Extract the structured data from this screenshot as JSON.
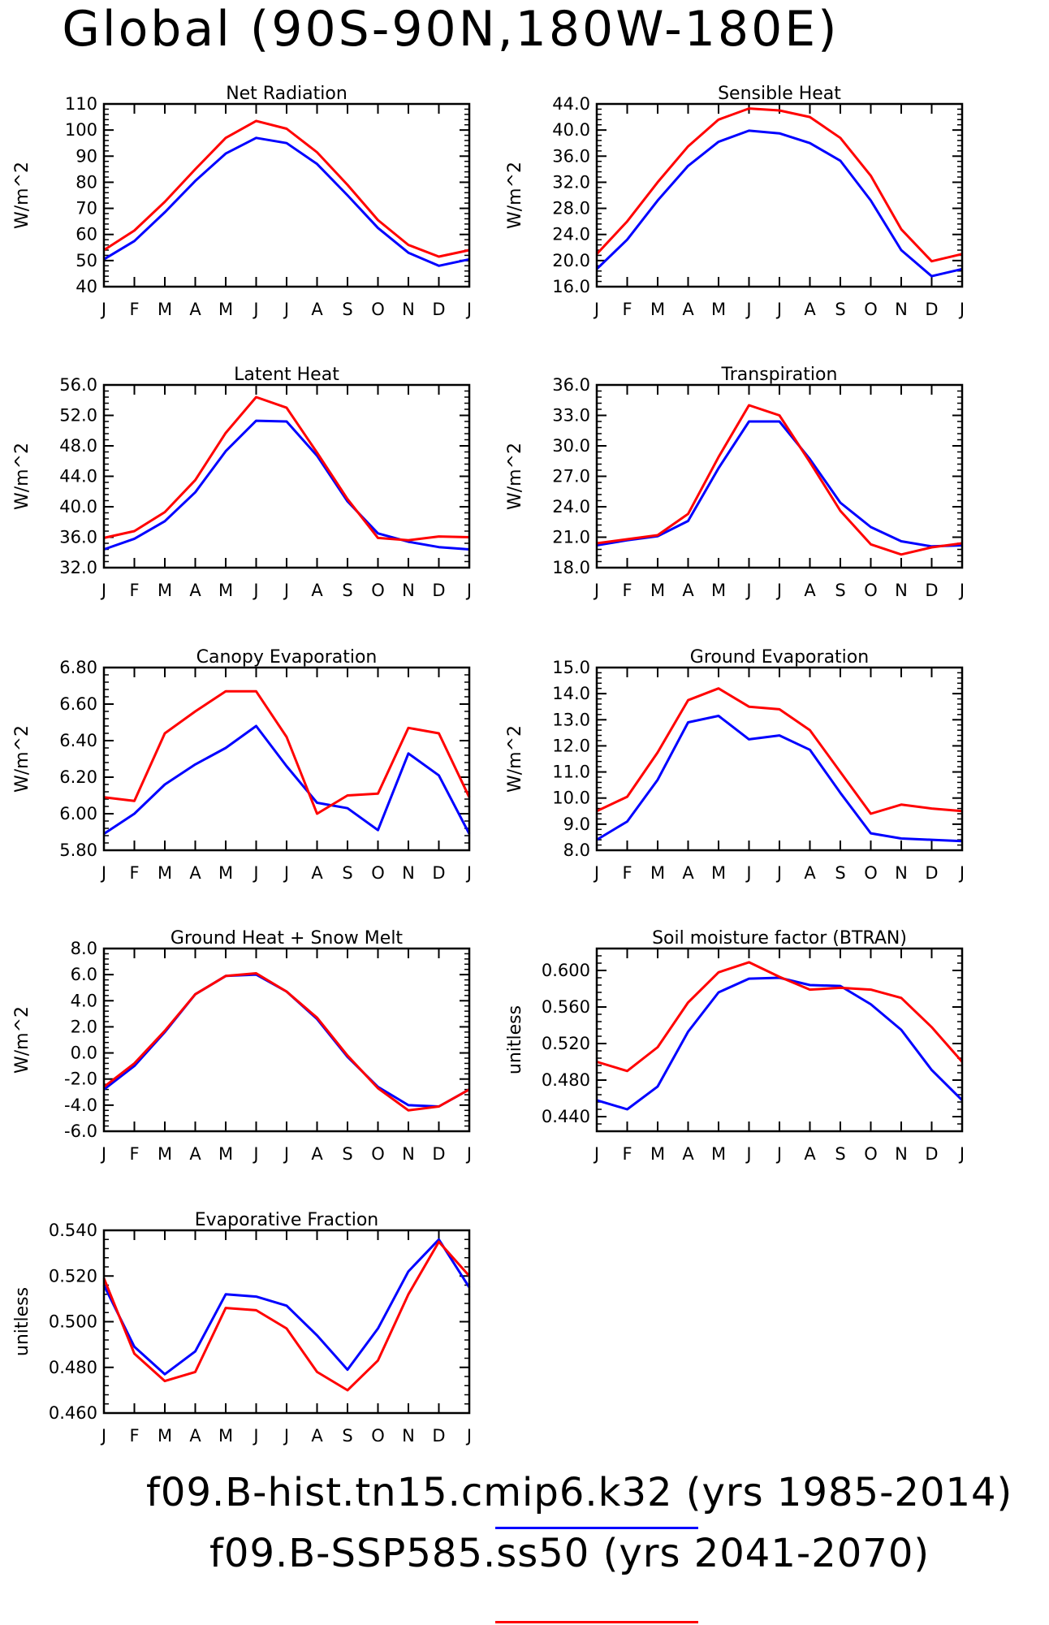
{
  "title": "Global (90S-90N,180W-180E)",
  "legend": [
    {
      "label": "f09.B-hist.tn15.cmip6.k32 (yrs 1985-2014)",
      "color": "#0000ff"
    },
    {
      "label": "f09.B-SSP585.ss50 (yrs 2041-2070)",
      "color": "#ff0000"
    }
  ],
  "chart_data": [
    {
      "type": "line",
      "title": "Net Radiation",
      "ylabel": "W/m^2",
      "ylim": [
        40,
        110
      ],
      "yticks": [
        "40",
        "50",
        "60",
        "70",
        "80",
        "90",
        "100",
        "110"
      ],
      "categories": [
        "J",
        "F",
        "M",
        "A",
        "M",
        "J",
        "J",
        "A",
        "S",
        "O",
        "N",
        "D",
        "J"
      ],
      "series": [
        {
          "values": [
            50.5,
            57.5,
            68.5,
            80.5,
            91,
            97,
            95,
            87,
            75,
            62.5,
            53,
            48,
            50.5
          ]
        },
        {
          "values": [
            54,
            61.5,
            72.5,
            85,
            97,
            103.5,
            100.5,
            91.5,
            79,
            65.5,
            56,
            51.5,
            54
          ]
        }
      ]
    },
    {
      "type": "line",
      "title": "Sensible Heat",
      "ylabel": "W/m^2",
      "ylim": [
        16,
        44
      ],
      "yticks": [
        "16.0",
        "20.0",
        "24.0",
        "28.0",
        "32.0",
        "36.0",
        "40.0",
        "44.0"
      ],
      "categories": [
        "J",
        "F",
        "M",
        "A",
        "M",
        "J",
        "J",
        "A",
        "S",
        "O",
        "N",
        "D",
        "J"
      ],
      "series": [
        {
          "values": [
            18.7,
            23.2,
            29.2,
            34.5,
            38.2,
            39.9,
            39.5,
            38.0,
            35.3,
            29.2,
            21.6,
            17.6,
            18.7
          ]
        },
        {
          "values": [
            21.0,
            26.0,
            32.0,
            37.5,
            41.6,
            43.3,
            43.0,
            42.0,
            38.8,
            33.0,
            24.8,
            19.9,
            21.0
          ]
        }
      ]
    },
    {
      "type": "line",
      "title": "Latent Heat",
      "ylabel": "W/m^2",
      "ylim": [
        32,
        56
      ],
      "yticks": [
        "32.0",
        "36.0",
        "40.0",
        "44.0",
        "48.0",
        "52.0",
        "56.0"
      ],
      "categories": [
        "J",
        "F",
        "M",
        "A",
        "M",
        "J",
        "J",
        "A",
        "S",
        "O",
        "N",
        "D",
        "J"
      ],
      "series": [
        {
          "values": [
            34.4,
            35.8,
            38.1,
            41.9,
            47.3,
            51.3,
            51.2,
            46.7,
            40.7,
            36.5,
            35.4,
            34.7,
            34.4
          ]
        },
        {
          "values": [
            35.9,
            36.8,
            39.3,
            43.5,
            49.7,
            54.4,
            53.0,
            47.1,
            41.0,
            35.9,
            35.6,
            36.1,
            36.0
          ]
        }
      ]
    },
    {
      "type": "line",
      "title": "Transpiration",
      "ylabel": "W/m^2",
      "ylim": [
        18,
        36
      ],
      "yticks": [
        "18.0",
        "21.0",
        "24.0",
        "27.0",
        "30.0",
        "33.0",
        "36.0"
      ],
      "categories": [
        "J",
        "F",
        "M",
        "A",
        "M",
        "J",
        "J",
        "A",
        "S",
        "O",
        "N",
        "D",
        "J"
      ],
      "series": [
        {
          "values": [
            20.2,
            20.7,
            21.1,
            22.6,
            27.8,
            32.4,
            32.4,
            28.7,
            24.4,
            22.0,
            20.6,
            20.1,
            20.2
          ]
        },
        {
          "values": [
            20.4,
            20.8,
            21.2,
            23.3,
            28.9,
            34.0,
            33.0,
            28.4,
            23.6,
            20.3,
            19.3,
            20.0,
            20.4
          ]
        }
      ]
    },
    {
      "type": "line",
      "title": "Canopy Evaporation",
      "ylabel": "W/m^2",
      "ylim": [
        5.8,
        6.8
      ],
      "yticks": [
        "5.80",
        "6.00",
        "6.20",
        "6.40",
        "6.60",
        "6.80"
      ],
      "categories": [
        "J",
        "F",
        "M",
        "A",
        "M",
        "J",
        "J",
        "A",
        "S",
        "O",
        "N",
        "D",
        "J"
      ],
      "series": [
        {
          "values": [
            5.89,
            6.0,
            6.16,
            6.27,
            6.36,
            6.48,
            6.26,
            6.06,
            6.03,
            5.91,
            6.33,
            6.21,
            5.89
          ]
        },
        {
          "values": [
            6.09,
            6.07,
            6.44,
            6.56,
            6.67,
            6.67,
            6.42,
            6.0,
            6.1,
            6.11,
            6.47,
            6.44,
            6.09
          ]
        }
      ]
    },
    {
      "type": "line",
      "title": "Ground Evaporation",
      "ylabel": "W/m^2",
      "ylim": [
        8,
        15
      ],
      "yticks": [
        "8.0",
        "9.0",
        "10.0",
        "11.0",
        "12.0",
        "13.0",
        "14.0",
        "15.0"
      ],
      "categories": [
        "J",
        "F",
        "M",
        "A",
        "M",
        "J",
        "J",
        "A",
        "S",
        "O",
        "N",
        "D",
        "J"
      ],
      "series": [
        {
          "values": [
            8.4,
            9.1,
            10.7,
            12.9,
            13.15,
            12.25,
            12.4,
            11.85,
            10.2,
            8.65,
            8.45,
            8.4,
            8.35
          ]
        },
        {
          "values": [
            9.5,
            10.05,
            11.75,
            13.75,
            14.2,
            13.5,
            13.4,
            12.6,
            11.0,
            9.4,
            9.75,
            9.6,
            9.5
          ]
        }
      ]
    },
    {
      "type": "line",
      "title": "Ground Heat + Snow Melt",
      "ylabel": "W/m^2",
      "ylim": [
        -6,
        8
      ],
      "yticks": [
        "-6.0",
        "-4.0",
        "-2.0",
        "0.0",
        "2.0",
        "4.0",
        "6.0",
        "8.0"
      ],
      "categories": [
        "J",
        "F",
        "M",
        "A",
        "M",
        "J",
        "J",
        "A",
        "S",
        "O",
        "N",
        "D",
        "J"
      ],
      "series": [
        {
          "values": [
            -2.8,
            -1.0,
            1.6,
            4.5,
            5.9,
            6.0,
            4.7,
            2.6,
            -0.3,
            -2.6,
            -4.0,
            -4.1,
            -2.8
          ]
        },
        {
          "values": [
            -2.6,
            -0.8,
            1.7,
            4.5,
            5.9,
            6.1,
            4.7,
            2.7,
            -0.2,
            -2.7,
            -4.4,
            -4.1,
            -2.8
          ]
        }
      ]
    },
    {
      "type": "line",
      "title": "Soil moisture factor (BTRAN)",
      "ylabel": "unitless",
      "ylim": [
        0.424,
        0.624
      ],
      "yticks": [
        "0.440",
        "0.480",
        "0.520",
        "0.560",
        "0.600"
      ],
      "categories": [
        "J",
        "F",
        "M",
        "A",
        "M",
        "J",
        "J",
        "A",
        "S",
        "O",
        "N",
        "D",
        "J"
      ],
      "series": [
        {
          "values": [
            0.458,
            0.448,
            0.473,
            0.533,
            0.576,
            0.591,
            0.592,
            0.584,
            0.583,
            0.563,
            0.535,
            0.491,
            0.458
          ]
        },
        {
          "values": [
            0.5,
            0.49,
            0.516,
            0.565,
            0.598,
            0.609,
            0.593,
            0.579,
            0.581,
            0.579,
            0.57,
            0.538,
            0.5
          ]
        }
      ]
    },
    {
      "type": "line",
      "title": "Evaporative Fraction",
      "ylabel": "unitless",
      "ylim": [
        0.46,
        0.54
      ],
      "yticks": [
        "0.460",
        "0.480",
        "0.500",
        "0.520",
        "0.540"
      ],
      "categories": [
        "J",
        "F",
        "M",
        "A",
        "M",
        "J",
        "J",
        "A",
        "S",
        "O",
        "N",
        "D",
        "J"
      ],
      "series": [
        {
          "values": [
            0.516,
            0.489,
            0.477,
            0.487,
            0.512,
            0.511,
            0.507,
            0.494,
            0.479,
            0.497,
            0.522,
            0.536,
            0.515
          ]
        },
        {
          "values": [
            0.519,
            0.486,
            0.474,
            0.478,
            0.506,
            0.505,
            0.497,
            0.478,
            0.47,
            0.483,
            0.512,
            0.535,
            0.52
          ]
        }
      ]
    }
  ]
}
